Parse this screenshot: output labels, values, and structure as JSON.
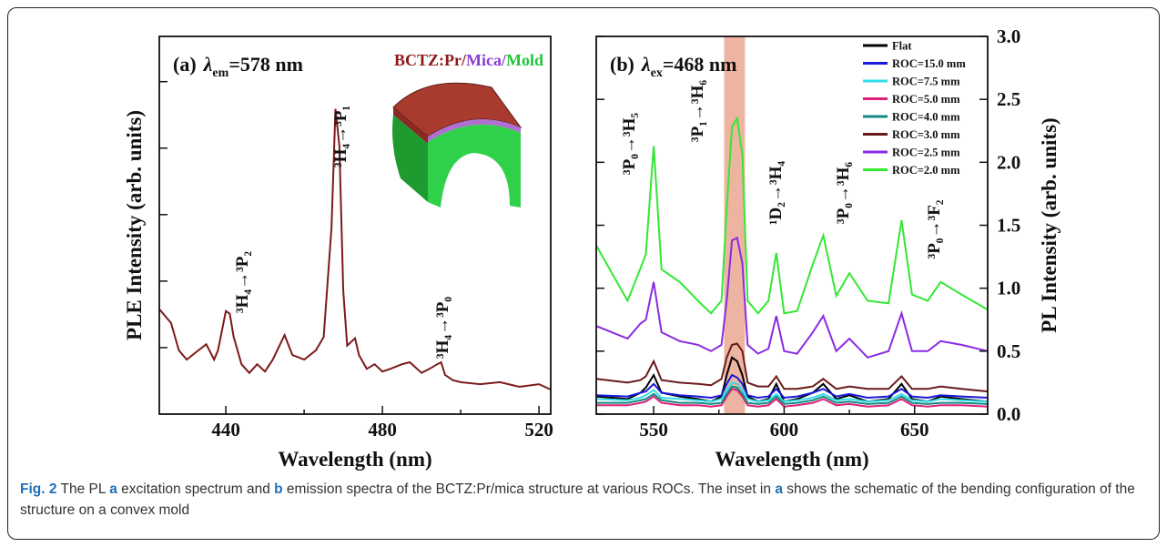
{
  "chart_data": [
    {
      "type": "line",
      "panel_label": "(a)",
      "symbol": "λ",
      "symbol_subscript": "em",
      "title": "=578 nm",
      "xlabel": "Wavelength (nm)",
      "ylabel": "PLE Intensity (arb. units)",
      "xlim": [
        423,
        523
      ],
      "xticks": [
        440,
        480,
        520
      ],
      "xticks_minor": [
        460,
        500
      ],
      "ylim": [
        0,
        5.68
      ],
      "yticks_unlabeled": [
        1,
        2,
        3,
        4,
        5
      ],
      "material_label": [
        {
          "text": "BCTZ:Pr",
          "color": "#8b1a1a"
        },
        {
          "text": "/",
          "color": "#8b1a1a"
        },
        {
          "text": "Mica",
          "color": "#8a3fd0"
        },
        {
          "text": "/",
          "color": "#8a3fd0"
        },
        {
          "text": "Mold",
          "color": "#22c43a"
        }
      ],
      "annotations": [
        "³H₄→³P₂",
        "³H₄→³P₁",
        "³H₄→³P₀"
      ],
      "series": [
        {
          "color": "#7b1a1a",
          "x": [
            423,
            426,
            428,
            430,
            433,
            435,
            437,
            438,
            440,
            441,
            442,
            444,
            446,
            448,
            450,
            452,
            455,
            457,
            460,
            463,
            465,
            467,
            468,
            469,
            470,
            471,
            473,
            474,
            476,
            478,
            480,
            482,
            485,
            487,
            490,
            492,
            494,
            495,
            496,
            498,
            500,
            505,
            510,
            515,
            520,
            523
          ],
          "values": [
            1.58,
            1.37,
            0.96,
            0.82,
            0.96,
            1.05,
            0.82,
            0.96,
            1.55,
            1.51,
            1.16,
            0.75,
            0.62,
            0.75,
            0.64,
            0.82,
            1.19,
            0.89,
            0.82,
            0.96,
            1.16,
            2.81,
            4.59,
            4.04,
            1.85,
            1.03,
            1.14,
            0.89,
            0.68,
            0.75,
            0.64,
            0.68,
            0.75,
            0.78,
            0.62,
            0.68,
            0.75,
            0.78,
            0.59,
            0.51,
            0.48,
            0.45,
            0.48,
            0.41,
            0.45,
            0.37
          ]
        }
      ]
    },
    {
      "type": "line",
      "panel_label": "(b)",
      "symbol": "λ",
      "symbol_subscript": "ex",
      "title": "=468 nm",
      "xlabel": "Wavelength (nm)",
      "ylabel": "PL Intensity (arb. units)",
      "xlim": [
        528,
        678
      ],
      "xticks": [
        550,
        600,
        650
      ],
      "xticks_minor": [
        575,
        625
      ],
      "ylim": [
        0,
        3.0
      ],
      "yticks": [
        {
          "value": 0,
          "label": "0.0"
        },
        {
          "value": 0.5,
          "label": "0.5"
        },
        {
          "value": 1,
          "label": "1.0"
        },
        {
          "value": 1.5,
          "label": "1.5"
        },
        {
          "value": 2,
          "label": "2.0"
        },
        {
          "value": 2.5,
          "label": "2.5"
        },
        {
          "value": 3,
          "label": "3.0"
        }
      ],
      "highlight": {
        "range": [
          577,
          585
        ],
        "color": "#eaa891"
      },
      "annotations": [
        "³P₀→³H₅",
        "³P₁→³H₆",
        "¹D₂→³H₄",
        "³P₀→³H₆",
        "³P₀→³F₂"
      ],
      "x": [
        528,
        540,
        545,
        547,
        550,
        553,
        560,
        567,
        572,
        576,
        578,
        580,
        582,
        584,
        586,
        590,
        594,
        597,
        600,
        605,
        611,
        615,
        620,
        625,
        632,
        640,
        645,
        649,
        655,
        660,
        668,
        678
      ],
      "series": [
        {
          "name": "Flat",
          "color": "#000000",
          "values": [
            0.14,
            0.12,
            0.17,
            0.21,
            0.31,
            0.17,
            0.14,
            0.12,
            0.1,
            0.14,
            0.31,
            0.45,
            0.42,
            0.31,
            0.14,
            0.1,
            0.12,
            0.24,
            0.1,
            0.12,
            0.17,
            0.24,
            0.12,
            0.15,
            0.1,
            0.12,
            0.24,
            0.12,
            0.1,
            0.14,
            0.12,
            0.1
          ]
        },
        {
          "name": "ROC=15.0 mm",
          "color": "#1a1adc",
          "values": [
            0.15,
            0.14,
            0.17,
            0.18,
            0.24,
            0.17,
            0.15,
            0.14,
            0.13,
            0.15,
            0.24,
            0.31,
            0.29,
            0.24,
            0.15,
            0.13,
            0.14,
            0.2,
            0.13,
            0.14,
            0.17,
            0.2,
            0.14,
            0.16,
            0.13,
            0.14,
            0.2,
            0.14,
            0.13,
            0.15,
            0.14,
            0.13
          ]
        },
        {
          "name": "ROC=7.5 mm",
          "color": "#33dde8",
          "values": [
            0.12,
            0.11,
            0.13,
            0.15,
            0.19,
            0.13,
            0.12,
            0.11,
            0.1,
            0.12,
            0.19,
            0.25,
            0.24,
            0.19,
            0.12,
            0.1,
            0.11,
            0.16,
            0.1,
            0.11,
            0.13,
            0.16,
            0.11,
            0.12,
            0.1,
            0.11,
            0.16,
            0.11,
            0.1,
            0.12,
            0.11,
            0.1
          ]
        },
        {
          "name": "ROC=5.0 mm",
          "color": "#e0207a",
          "values": [
            0.07,
            0.07,
            0.09,
            0.1,
            0.14,
            0.09,
            0.07,
            0.07,
            0.06,
            0.07,
            0.14,
            0.2,
            0.19,
            0.14,
            0.07,
            0.06,
            0.07,
            0.12,
            0.06,
            0.07,
            0.09,
            0.12,
            0.07,
            0.08,
            0.06,
            0.07,
            0.12,
            0.07,
            0.06,
            0.07,
            0.07,
            0.06
          ]
        },
        {
          "name": "ROC=4.0 mm",
          "color": "#138a80",
          "values": [
            0.09,
            0.09,
            0.11,
            0.12,
            0.16,
            0.11,
            0.09,
            0.09,
            0.08,
            0.09,
            0.16,
            0.22,
            0.21,
            0.16,
            0.09,
            0.08,
            0.09,
            0.14,
            0.08,
            0.09,
            0.11,
            0.14,
            0.09,
            0.1,
            0.08,
            0.09,
            0.14,
            0.09,
            0.08,
            0.09,
            0.09,
            0.08
          ]
        },
        {
          "name": "ROC=3.0 mm",
          "color": "#6b1a1a",
          "values": [
            0.28,
            0.25,
            0.27,
            0.3,
            0.42,
            0.27,
            0.25,
            0.24,
            0.23,
            0.28,
            0.45,
            0.55,
            0.56,
            0.5,
            0.25,
            0.22,
            0.22,
            0.3,
            0.2,
            0.2,
            0.22,
            0.28,
            0.2,
            0.22,
            0.2,
            0.2,
            0.3,
            0.2,
            0.2,
            0.22,
            0.2,
            0.18
          ]
        },
        {
          "name": "ROC=2.5 mm",
          "color": "#8a2be2",
          "values": [
            0.7,
            0.6,
            0.72,
            0.75,
            1.05,
            0.65,
            0.58,
            0.55,
            0.5,
            0.55,
            0.9,
            1.38,
            1.4,
            1.2,
            0.55,
            0.48,
            0.52,
            0.78,
            0.5,
            0.48,
            0.65,
            0.78,
            0.5,
            0.6,
            0.45,
            0.5,
            0.8,
            0.5,
            0.5,
            0.58,
            0.55,
            0.5
          ]
        },
        {
          "name": "ROC=2.0 mm",
          "color": "#33e833",
          "values": [
            1.34,
            0.9,
            1.16,
            1.27,
            2.13,
            1.15,
            1.05,
            0.9,
            0.8,
            0.9,
            1.63,
            2.28,
            2.35,
            2.06,
            0.9,
            0.8,
            0.9,
            1.28,
            0.8,
            0.82,
            1.19,
            1.42,
            0.94,
            1.12,
            0.9,
            0.88,
            1.54,
            0.95,
            0.9,
            1.05,
            0.95,
            0.83
          ]
        }
      ]
    }
  ],
  "caption": [
    {
      "text": "Fig. 2",
      "bold": true
    },
    {
      "text": " The PL ",
      "bold": false
    },
    {
      "text": "a",
      "bold": true
    },
    {
      "text": " excitation spectrum and ",
      "bold": false
    },
    {
      "text": "b",
      "bold": true
    },
    {
      "text": " emission spectra of the BCTZ:Pr/mica structure at various ROCs. The inset in ",
      "bold": false
    },
    {
      "text": "a",
      "bold": true
    },
    {
      "text": " shows the schematic of the bending configuration of the structure on a convex mold",
      "bold": false
    }
  ]
}
